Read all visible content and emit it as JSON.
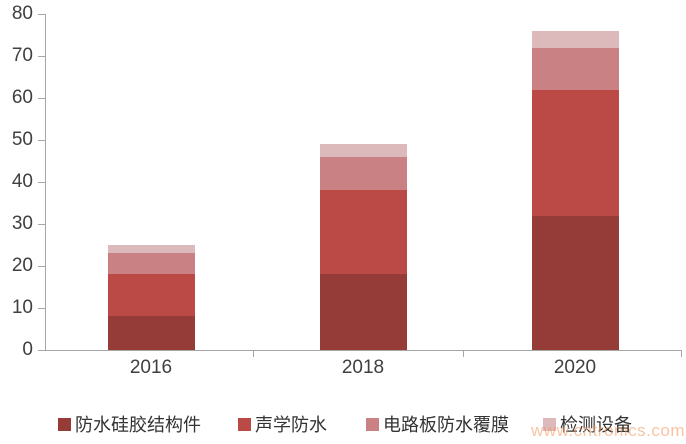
{
  "chart_data": {
    "type": "bar",
    "stacked": true,
    "title": "",
    "xlabel": "",
    "ylabel": "",
    "categories": [
      "2016",
      "2018",
      "2020"
    ],
    "series": [
      {
        "name": "防水硅胶结构件",
        "color": "#953B38",
        "values": [
          8,
          18,
          32
        ]
      },
      {
        "name": "声学防水",
        "color": "#BB4A46",
        "values": [
          10,
          20,
          30
        ]
      },
      {
        "name": "电路板防水覆膜",
        "color": "#CA8183",
        "values": [
          5,
          8,
          10
        ]
      },
      {
        "name": "检测设备",
        "color": "#DCB9BB",
        "values": [
          2,
          3,
          4
        ]
      }
    ],
    "totals": [
      25,
      49,
      76
    ],
    "ylim": [
      0,
      80
    ],
    "yticks": [
      0,
      10,
      20,
      30,
      40,
      50,
      60,
      70,
      80
    ],
    "grid": false,
    "legend_position": "bottom",
    "axis_color": "#A6A6A6",
    "tick_label_color": "#3F3F3F"
  },
  "legend": {
    "items": [
      {
        "label": "防水硅胶结构件",
        "color": "#953B38"
      },
      {
        "label": "声学防水",
        "color": "#BB4A46"
      },
      {
        "label": "电路板防水覆膜",
        "color": "#CA8183"
      },
      {
        "label": "检测设备",
        "color": "#DCB9BB"
      }
    ]
  },
  "watermark": {
    "text": "www.cntronics.com",
    "color": "#F29455"
  }
}
